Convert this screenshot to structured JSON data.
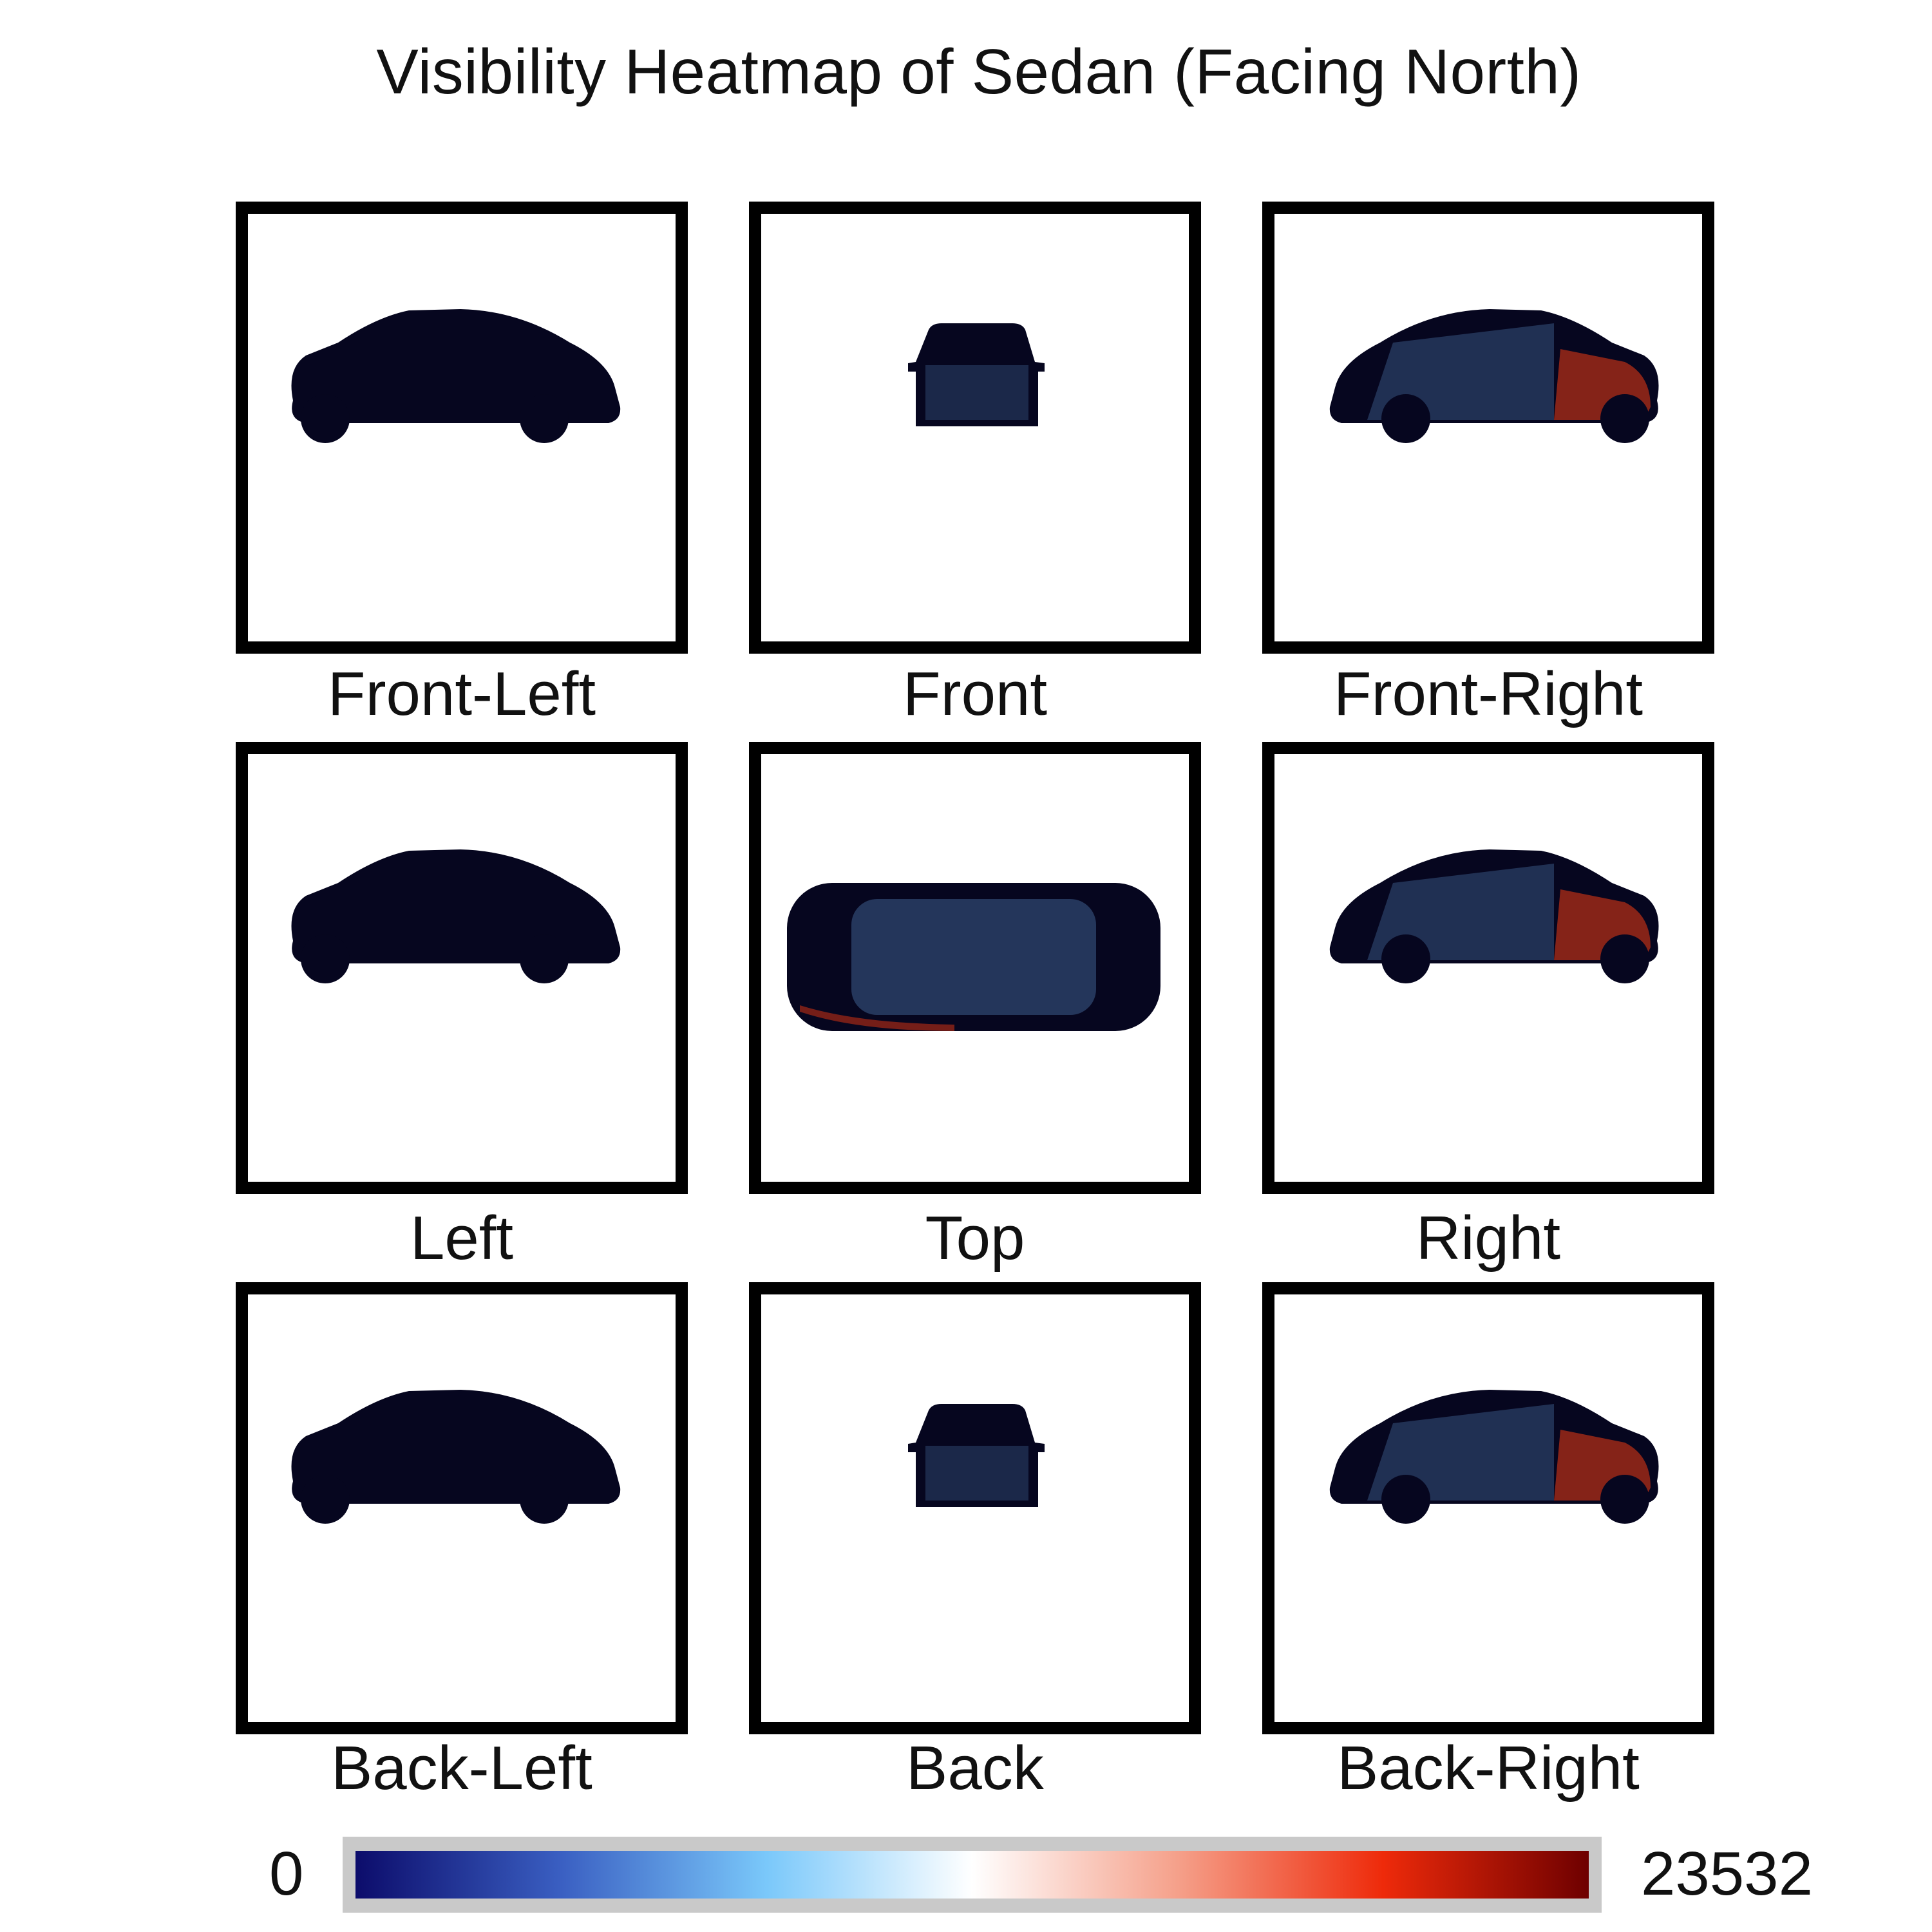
{
  "title": "Visibility Heatmap of Sedan (Facing North)",
  "views": [
    {
      "key": "front-left",
      "label": "Front-Left",
      "kind": "side",
      "flip": false,
      "heat": "low"
    },
    {
      "key": "front",
      "label": "Front",
      "kind": "end",
      "flip": false,
      "heat": "low"
    },
    {
      "key": "front-right",
      "label": "Front-Right",
      "kind": "side",
      "flip": true,
      "heat": "high"
    },
    {
      "key": "left",
      "label": "Left",
      "kind": "side",
      "flip": false,
      "heat": "low"
    },
    {
      "key": "top",
      "label": "Top",
      "kind": "top",
      "flip": false,
      "heat": "mid"
    },
    {
      "key": "right",
      "label": "Right",
      "kind": "side",
      "flip": true,
      "heat": "high"
    },
    {
      "key": "back-left",
      "label": "Back-Left",
      "kind": "side",
      "flip": false,
      "heat": "low"
    },
    {
      "key": "back",
      "label": "Back",
      "kind": "end",
      "flip": false,
      "heat": "low"
    },
    {
      "key": "back-right",
      "label": "Back-Right",
      "kind": "side",
      "flip": true,
      "heat": "high"
    }
  ],
  "colorbar": {
    "min_label": "0",
    "max_label": "23532",
    "stops": [
      "#0c0c6b",
      "#3a5fc2",
      "#7ac8fa",
      "#ffffff",
      "#f5a08a",
      "#ee2a0a",
      "#6e0000"
    ]
  },
  "colors": {
    "car_body": "#06061f",
    "car_mid": "#2a3f66",
    "heat_high": "#a52a16",
    "panel_border": "#000000"
  }
}
